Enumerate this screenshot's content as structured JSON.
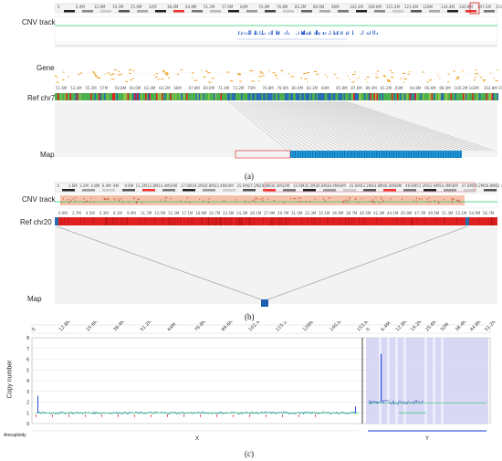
{
  "panel_a": {
    "cnv_label": "CNV track",
    "gene_label": "Gene",
    "ref_label": "Ref chr7",
    "map_label": "Map",
    "caption": "(a)",
    "ruler_ticks": [
      "0",
      "6.4M",
      "12.8M",
      "19.2M",
      "25.6M",
      "32M",
      "38.4M",
      "44.8M",
      "51.2M",
      "57.6M",
      "64M",
      "70.4M",
      "76.8M",
      "83.2M",
      "89.6M",
      "96M",
      "102.4M",
      "108.8M",
      "115.2M",
      "121.6M",
      "128M",
      "134.4M",
      "140.8M",
      "147.2M",
      "153.6M"
    ],
    "ref_ticks": [
      "51.6M",
      "53.4M",
      "55.2M",
      "57M",
      "58.8M",
      "60.6M",
      "62.4M",
      "64.2M",
      "66M",
      "67.8M",
      "69.6M",
      "71.4M",
      "73.2M",
      "75M",
      "76.8M",
      "78.6M",
      "80.4M",
      "82.2M",
      "84M",
      "85.8M",
      "87.6M",
      "89.4M",
      "91.2M",
      "93M",
      "94.8M",
      "96.6M",
      "98.4M",
      "100.2M",
      "102M",
      "103.8M",
      "105.6M"
    ],
    "gene_names": [
      "SEMA3A",
      "PRKAG2-1",
      "CDK14",
      "SAMD9",
      "CALN1",
      "AUTS2"
    ]
  },
  "panel_b": {
    "cnv_label": "CNV track",
    "ref_label": "Ref chr20",
    "map_label": "Map",
    "caption": "(b)",
    "ruler_ticks": [
      "0",
      "1.6M",
      "3.2M",
      "4.8M",
      "6.4M",
      "8M",
      "9.6M",
      "11.2M",
      "12.8M",
      "14.4M",
      "16M",
      "17.6M",
      "19.2M",
      "20.8M",
      "22.4M",
      "24M",
      "25.6M",
      "27.2M",
      "28.8M",
      "30.4M",
      "32M",
      "33.6M",
      "35.2M",
      "36.8M",
      "38.4M",
      "40M",
      "41.6M",
      "43.2M",
      "44.8M",
      "46.4M",
      "48M",
      "49.6M",
      "51.2M",
      "52.8M",
      "54.4M",
      "56M",
      "57.6M",
      "59.2M",
      "60.8M",
      "62.4M"
    ]
  },
  "panel_c": {
    "caption": "(c)",
    "ylabel": "Copy number",
    "aneuploidy_label": "Aneuploidy",
    "x_chrom_label": "X",
    "y_chrom_label": "Y",
    "x_ticks": [
      "0",
      "12.8M",
      "25.6M",
      "38.4M",
      "51.2M",
      "64M",
      "76.8M",
      "89.6M",
      "102.4M",
      "115.2M",
      "128M",
      "140.8M",
      "153.6M"
    ],
    "y_ticks_chrY": [
      "0",
      "6.4M",
      "12.8M",
      "19.2M",
      "25.6M",
      "32M",
      "38.4M",
      "44.8M",
      "51.2M"
    ],
    "y_axis_ticks": [
      "0",
      "1",
      "2",
      "3",
      "4",
      "5",
      "6",
      "7",
      "8"
    ]
  },
  "colors": {
    "ref_red": "#e02020",
    "ref_green": "#4caf50",
    "map_blue": "#1f9fe0",
    "cnv_green": "#2ecc71",
    "gene_orange": "#f0a020",
    "highlight_purple": "#c8c8f0"
  }
}
